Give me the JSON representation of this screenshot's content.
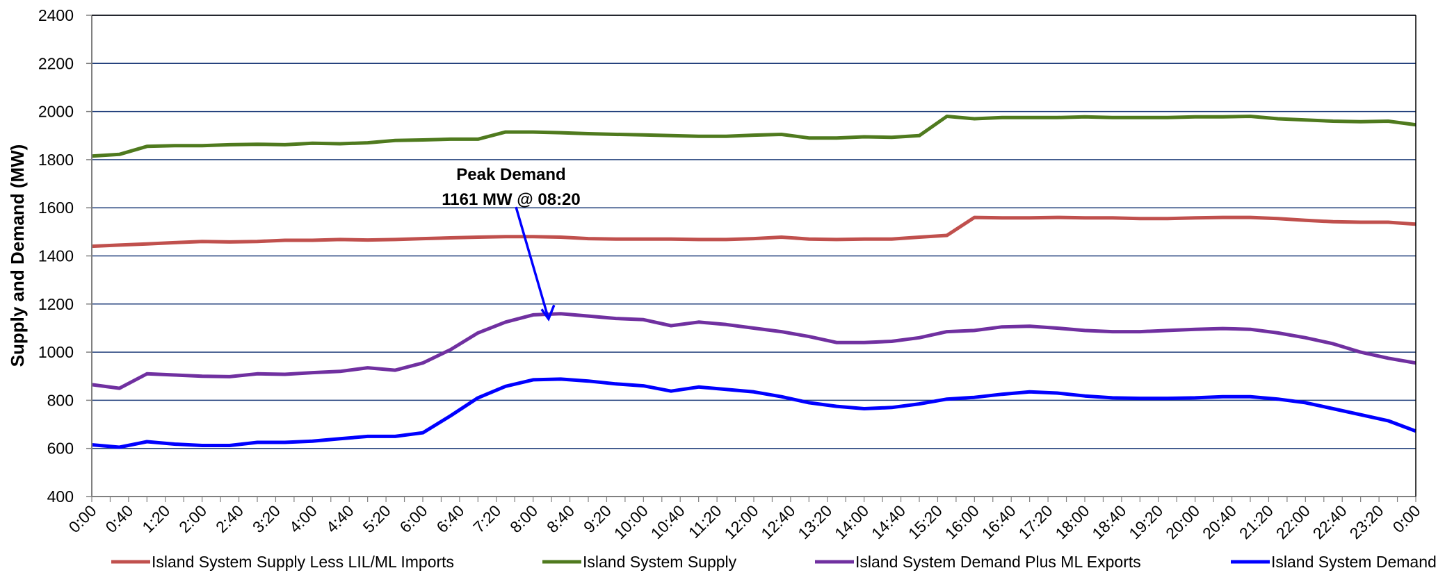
{
  "chart_data": {
    "type": "line",
    "ylabel": "Supply and Demand (MW)",
    "xlabel": "",
    "ylim": [
      400,
      2400
    ],
    "yticks": [
      400,
      600,
      800,
      1000,
      1200,
      1400,
      1600,
      1800,
      2000,
      2200,
      2400
    ],
    "xticks": [
      "0:00",
      "0:40",
      "1:20",
      "2:00",
      "2:40",
      "3:20",
      "4:00",
      "4:40",
      "5:20",
      "6:00",
      "6:40",
      "7:20",
      "8:00",
      "8:40",
      "9:20",
      "10:00",
      "10:40",
      "11:20",
      "12:00",
      "12:40",
      "13:20",
      "14:00",
      "14:40",
      "15:20",
      "16:00",
      "16:40",
      "17:20",
      "18:00",
      "18:40",
      "19:20",
      "20:00",
      "20:40",
      "21:20",
      "22:00",
      "22:40",
      "23:20",
      "0:00"
    ],
    "x_hours": [
      0,
      0.5,
      1,
      1.5,
      2,
      2.5,
      3,
      3.5,
      4,
      4.5,
      5,
      5.5,
      6,
      6.5,
      7,
      7.5,
      8,
      8.5,
      9,
      9.5,
      10,
      10.5,
      11,
      11.5,
      12,
      12.5,
      13,
      13.5,
      14,
      14.5,
      15,
      15.5,
      16,
      16.5,
      17,
      17.5,
      18,
      18.5,
      19,
      19.5,
      20,
      20.5,
      21,
      21.5,
      22,
      22.5,
      23,
      23.5,
      24
    ],
    "grid": true,
    "legend_position": "bottom",
    "annotation": {
      "title": "Peak Demand",
      "text": "1161 MW @ 08:20",
      "x_hours": 8.33,
      "y": 1161
    },
    "series": [
      {
        "name": "Island System Supply Less LIL/ML Imports",
        "color": "#c0504d",
        "values": [
          1440,
          1445,
          1450,
          1455,
          1460,
          1458,
          1460,
          1465,
          1465,
          1468,
          1466,
          1468,
          1472,
          1475,
          1478,
          1480,
          1480,
          1478,
          1472,
          1470,
          1470,
          1470,
          1468,
          1468,
          1472,
          1478,
          1470,
          1468,
          1470,
          1470,
          1478,
          1485,
          1560,
          1558,
          1558,
          1560,
          1558,
          1558,
          1555,
          1555,
          1558,
          1560,
          1560,
          1555,
          1548,
          1542,
          1540,
          1540,
          1532
        ]
      },
      {
        "name": "Island System Supply",
        "color": "#4f7a1e",
        "values": [
          1815,
          1822,
          1855,
          1858,
          1858,
          1862,
          1864,
          1862,
          1868,
          1866,
          1870,
          1880,
          1882,
          1885,
          1885,
          1915,
          1915,
          1912,
          1908,
          1905,
          1903,
          1900,
          1897,
          1897,
          1902,
          1905,
          1890,
          1890,
          1895,
          1893,
          1900,
          1980,
          1970,
          1975,
          1975,
          1975,
          1978,
          1975,
          1975,
          1975,
          1978,
          1978,
          1980,
          1970,
          1965,
          1960,
          1958,
          1960,
          1945
        ]
      },
      {
        "name": "Island System Demand Plus ML Exports",
        "color": "#7030a0",
        "values": [
          865,
          850,
          910,
          905,
          900,
          898,
          910,
          908,
          915,
          920,
          935,
          925,
          955,
          1010,
          1080,
          1125,
          1155,
          1160,
          1150,
          1140,
          1135,
          1110,
          1125,
          1115,
          1100,
          1085,
          1065,
          1040,
          1040,
          1045,
          1060,
          1085,
          1090,
          1105,
          1108,
          1100,
          1090,
          1085,
          1085,
          1090,
          1095,
          1098,
          1095,
          1080,
          1060,
          1035,
          1000,
          975,
          955
        ]
      },
      {
        "name": "Island System Demand",
        "color": "#0000ff",
        "values": [
          615,
          605,
          628,
          618,
          612,
          612,
          625,
          625,
          630,
          640,
          650,
          650,
          665,
          735,
          810,
          858,
          885,
          888,
          880,
          868,
          860,
          838,
          855,
          845,
          835,
          815,
          790,
          775,
          765,
          770,
          785,
          805,
          812,
          825,
          835,
          830,
          818,
          810,
          808,
          808,
          810,
          815,
          815,
          805,
          790,
          765,
          740,
          715,
          672
        ]
      }
    ]
  }
}
